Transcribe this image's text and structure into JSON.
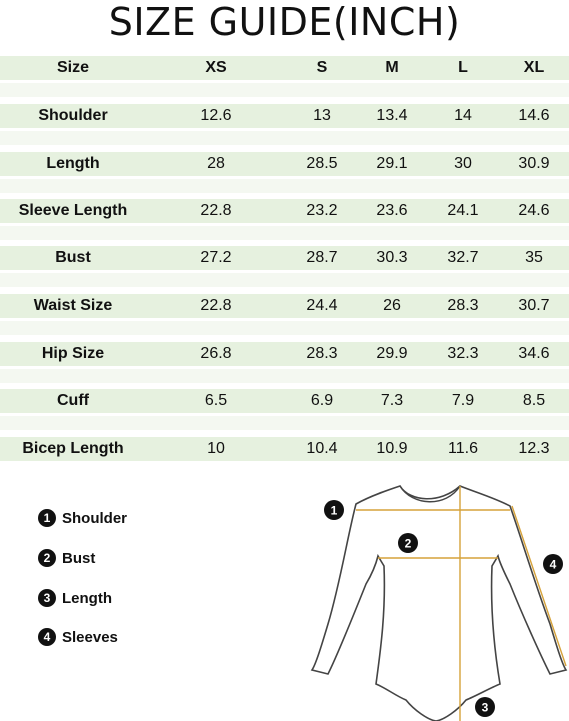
{
  "title": "SIZE GUIDE(INCH)",
  "table": {
    "header": {
      "label": "Size",
      "sizes": [
        "XS",
        "S",
        "M",
        "L",
        "XL"
      ]
    },
    "rows": [
      {
        "label": "Shoulder",
        "values": [
          "12.6",
          "13",
          "13.4",
          "14",
          "14.6"
        ]
      },
      {
        "label": "Length",
        "values": [
          "28",
          "28.5",
          "29.1",
          "30",
          "30.9"
        ]
      },
      {
        "label": "Sleeve Length",
        "values": [
          "22.8",
          "23.2",
          "23.6",
          "24.1",
          "24.6"
        ]
      },
      {
        "label": "Bust",
        "values": [
          "27.2",
          "28.7",
          "30.3",
          "32.7",
          "35"
        ]
      },
      {
        "label": "Waist Size",
        "values": [
          "22.8",
          "24.4",
          "26",
          "28.3",
          "30.7"
        ]
      },
      {
        "label": "Hip Size",
        "values": [
          "26.8",
          "28.3",
          "29.9",
          "32.3",
          "34.6"
        ]
      },
      {
        "label": "Cuff",
        "values": [
          "6.5",
          "6.9",
          "7.3",
          "7.9",
          "8.5"
        ]
      },
      {
        "label": "Bicep Length",
        "values": [
          "10",
          "10.4",
          "10.9",
          "11.6",
          "12.3"
        ]
      }
    ]
  },
  "legend": [
    {
      "num": "1",
      "label": "Shoulder"
    },
    {
      "num": "2",
      "label": "Bust"
    },
    {
      "num": "3",
      "label": "Length"
    },
    {
      "num": "4",
      "label": "Sleeves"
    }
  ],
  "diagram": {
    "markers": [
      "1",
      "2",
      "3",
      "4"
    ]
  },
  "colors": {
    "row_green": "#e6f1df",
    "row_pale": "#f4f8f1",
    "measure_line": "#d6a23a",
    "outline": "#444444"
  }
}
